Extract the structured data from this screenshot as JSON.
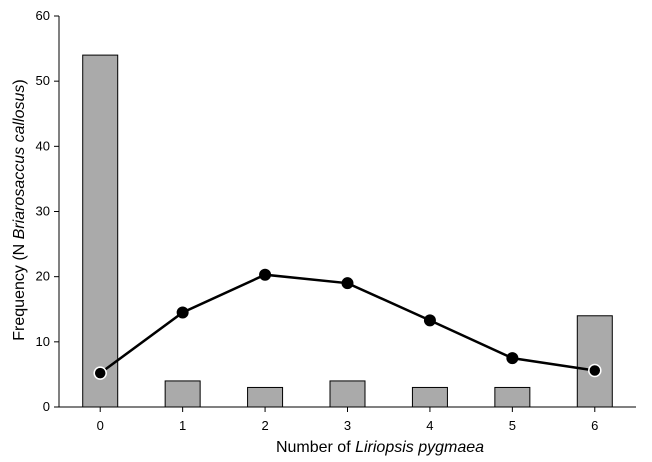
{
  "chart_data": {
    "type": "bar",
    "categories": [
      "0",
      "1",
      "2",
      "3",
      "4",
      "5",
      "6"
    ],
    "series": [
      {
        "type": "bar",
        "values": [
          54,
          4,
          3,
          4,
          3,
          3,
          14
        ],
        "color": "#aaaaaa"
      },
      {
        "type": "line",
        "values": [
          5.2,
          14.5,
          20.3,
          19.0,
          13.3,
          7.5,
          5.6
        ],
        "color": "#000000"
      }
    ],
    "xlabel": {
      "prefix": "Number of ",
      "italic": "Liriopsis pygmaea"
    },
    "ylabel": {
      "prefix": "Frequency (N ",
      "italic": "Briarosaccus callosus",
      "suffix": ")"
    },
    "ylim": [
      0,
      60
    ],
    "yticks": [
      "0",
      "10",
      "20",
      "30",
      "40",
      "50",
      "60"
    ],
    "grid": false,
    "legend": false
  }
}
